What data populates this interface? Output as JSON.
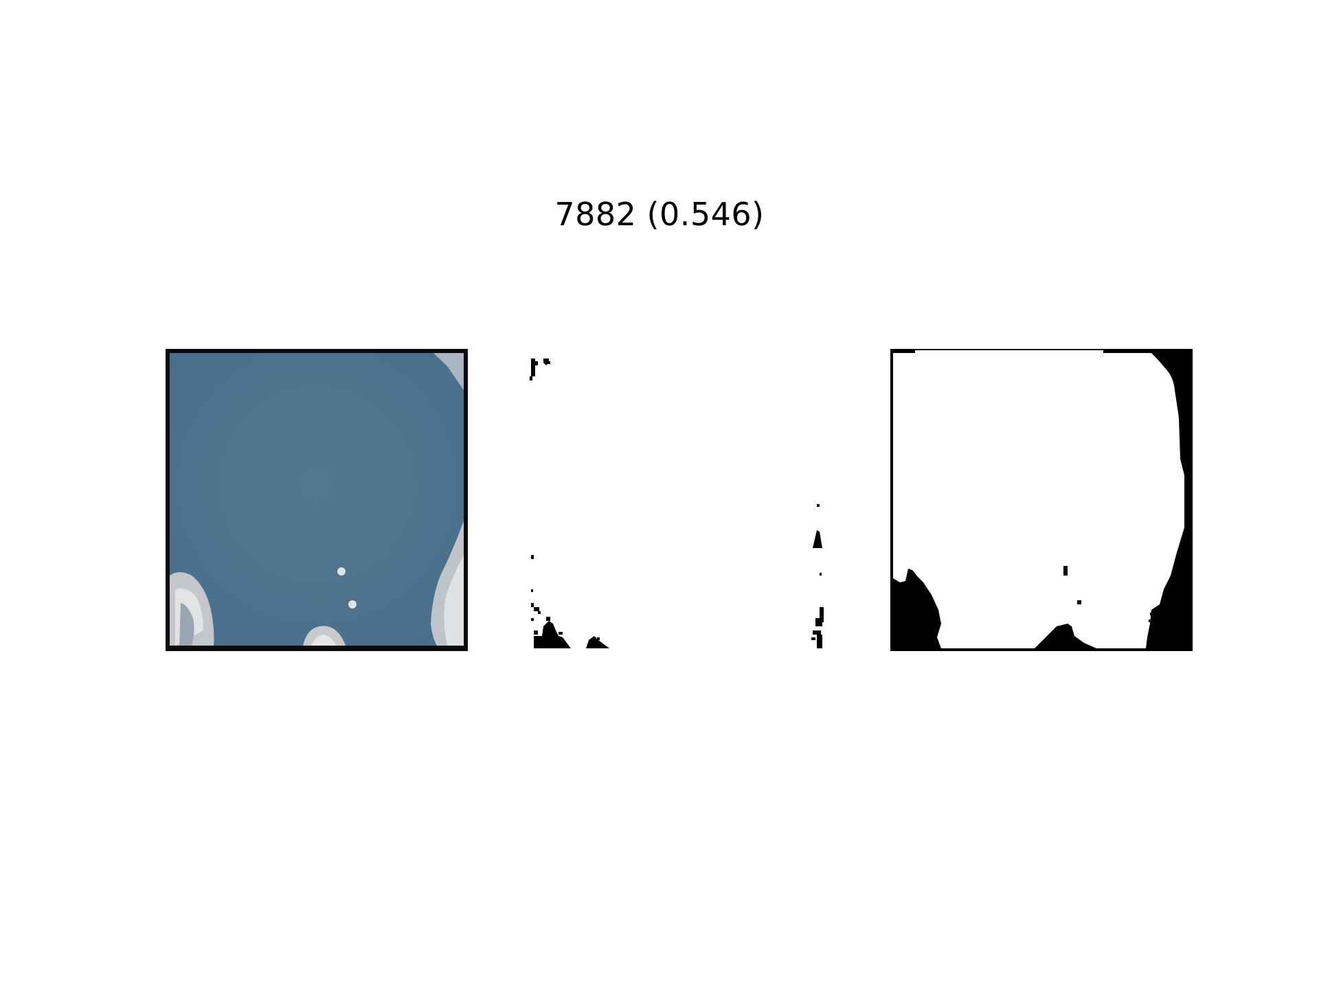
{
  "title": "7882 (0.546)",
  "panels": [
    {
      "name": "input-image",
      "kind": "satellite-image"
    },
    {
      "name": "predicted-mask",
      "kind": "binary-mask"
    },
    {
      "name": "ground-truth-mask",
      "kind": "binary-mask"
    }
  ],
  "colors": {
    "water": "#4e7390",
    "land": "#c9ccd0",
    "mask_fg": "#ffffff",
    "mask_bg": "#000000",
    "background": "#ffffff"
  }
}
